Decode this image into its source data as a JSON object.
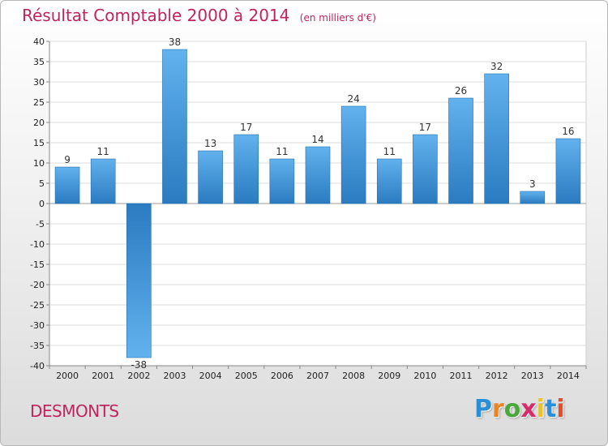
{
  "header": {
    "title": "Résultat Comptable 2000 à 2014",
    "subtitle": "(en milliers d'€)"
  },
  "footer": {
    "commune": "DESMONTS",
    "logo_letters": [
      "P",
      "r",
      "o",
      "x",
      "i",
      "t",
      "i"
    ],
    "logo_colors": [
      "#2a8fd6",
      "#e8852a",
      "#4aa83a",
      "#d62a6a",
      "#e8c32a",
      "#2a8fd6",
      "#e84a2a"
    ]
  },
  "chart_data": {
    "type": "bar",
    "title": "Résultat Comptable 2000 à 2014",
    "subtitle": "(en milliers d'€)",
    "xlabel": "",
    "ylabel": "",
    "categories": [
      "2000",
      "2001",
      "2002",
      "2003",
      "2004",
      "2005",
      "2006",
      "2007",
      "2008",
      "2009",
      "2010",
      "2011",
      "2012",
      "2013",
      "2014"
    ],
    "values": [
      9,
      11,
      -38,
      38,
      13,
      17,
      11,
      14,
      24,
      11,
      17,
      26,
      32,
      3,
      16
    ],
    "labels": [
      "9",
      "11",
      "-38",
      "38",
      "13",
      "17",
      "11",
      "14",
      "24",
      "11",
      "17",
      "26",
      "32",
      "3",
      "16"
    ],
    "ylim": [
      -40,
      40
    ],
    "yticks": [
      40,
      35,
      30,
      25,
      20,
      15,
      10,
      5,
      0,
      -5,
      -10,
      -15,
      -20,
      -25,
      -30,
      -35,
      -40
    ],
    "grid": true,
    "bar_color_light": "#62b2ee",
    "bar_color_dark": "#2a7bc0"
  }
}
